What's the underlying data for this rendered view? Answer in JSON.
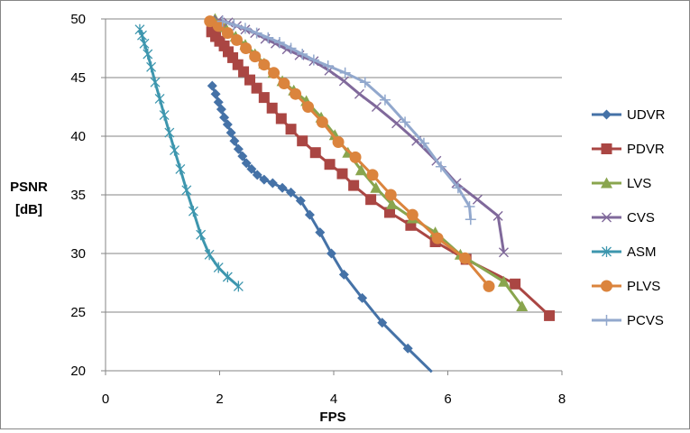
{
  "chart_data": {
    "type": "line",
    "title": "",
    "xlabel": "FPS",
    "ylabel_lines": [
      "PSNR",
      "[dB]"
    ],
    "xlim": [
      0,
      8
    ],
    "ylim": [
      20,
      50
    ],
    "x_ticks": [
      0,
      2,
      4,
      6,
      8
    ],
    "y_ticks": [
      20,
      25,
      30,
      35,
      40,
      45,
      50
    ],
    "grid": "horizontal",
    "legend_position": "right",
    "series": [
      {
        "name": "UDVR",
        "color": "#4572A7",
        "marker": "diamond",
        "points": [
          [
            1.87,
            44.3
          ],
          [
            1.93,
            43.6
          ],
          [
            1.98,
            42.9
          ],
          [
            2.03,
            42.3
          ],
          [
            2.08,
            41.6
          ],
          [
            2.14,
            41.0
          ],
          [
            2.2,
            40.3
          ],
          [
            2.26,
            39.6
          ],
          [
            2.33,
            38.9
          ],
          [
            2.4,
            38.3
          ],
          [
            2.47,
            37.7
          ],
          [
            2.56,
            37.2
          ],
          [
            2.66,
            36.7
          ],
          [
            2.78,
            36.3
          ],
          [
            2.93,
            36.0
          ],
          [
            3.1,
            35.6
          ],
          [
            3.25,
            35.2
          ],
          [
            3.42,
            34.5
          ],
          [
            3.58,
            33.3
          ],
          [
            3.76,
            31.8
          ],
          [
            3.96,
            30.0
          ],
          [
            4.18,
            28.2
          ],
          [
            4.5,
            26.2
          ],
          [
            4.85,
            24.1
          ],
          [
            5.3,
            21.9
          ],
          [
            5.72,
            19.9
          ]
        ]
      },
      {
        "name": "PDVR",
        "color": "#AA4643",
        "marker": "square",
        "points": [
          [
            1.86,
            48.9
          ],
          [
            1.93,
            48.5
          ],
          [
            2.0,
            48.1
          ],
          [
            2.08,
            47.7
          ],
          [
            2.15,
            47.2
          ],
          [
            2.23,
            46.7
          ],
          [
            2.32,
            46.1
          ],
          [
            2.42,
            45.5
          ],
          [
            2.53,
            44.8
          ],
          [
            2.65,
            44.1
          ],
          [
            2.78,
            43.3
          ],
          [
            2.92,
            42.4
          ],
          [
            3.08,
            41.5
          ],
          [
            3.25,
            40.6
          ],
          [
            3.45,
            39.6
          ],
          [
            3.68,
            38.6
          ],
          [
            3.93,
            37.6
          ],
          [
            4.15,
            36.8
          ],
          [
            4.35,
            35.8
          ],
          [
            4.65,
            34.6
          ],
          [
            4.98,
            33.5
          ],
          [
            5.35,
            32.4
          ],
          [
            5.78,
            31.0
          ],
          [
            6.32,
            29.5
          ],
          [
            7.18,
            27.4
          ],
          [
            7.78,
            24.7
          ]
        ]
      },
      {
        "name": "LVS",
        "color": "#89A54E",
        "marker": "triangle",
        "points": [
          [
            1.92,
            50.0
          ],
          [
            2.1,
            49.3
          ],
          [
            2.28,
            48.5
          ],
          [
            2.45,
            47.8
          ],
          [
            2.62,
            47.0
          ],
          [
            2.78,
            46.2
          ],
          [
            2.94,
            45.4
          ],
          [
            3.1,
            44.7
          ],
          [
            3.3,
            43.9
          ],
          [
            3.52,
            43.0
          ],
          [
            3.78,
            41.6
          ],
          [
            4.02,
            40.1
          ],
          [
            4.25,
            38.6
          ],
          [
            4.48,
            37.1
          ],
          [
            4.74,
            35.6
          ],
          [
            5.02,
            34.2
          ],
          [
            5.38,
            33.0
          ],
          [
            5.78,
            31.8
          ],
          [
            6.22,
            29.9
          ],
          [
            6.98,
            27.6
          ],
          [
            7.3,
            25.5
          ]
        ]
      },
      {
        "name": "CVS",
        "color": "#80699B",
        "marker": "x",
        "points": [
          [
            1.98,
            49.9
          ],
          [
            2.15,
            49.7
          ],
          [
            2.3,
            49.4
          ],
          [
            2.45,
            49.1
          ],
          [
            2.62,
            48.8
          ],
          [
            2.8,
            48.3
          ],
          [
            2.98,
            47.9
          ],
          [
            3.18,
            47.4
          ],
          [
            3.4,
            46.9
          ],
          [
            3.65,
            46.4
          ],
          [
            3.92,
            45.6
          ],
          [
            4.18,
            44.7
          ],
          [
            4.45,
            43.6
          ],
          [
            4.75,
            42.5
          ],
          [
            5.1,
            41.1
          ],
          [
            5.45,
            39.6
          ],
          [
            5.8,
            37.9
          ],
          [
            6.15,
            36.0
          ],
          [
            6.52,
            34.6
          ],
          [
            6.88,
            33.2
          ],
          [
            6.98,
            30.1
          ]
        ]
      },
      {
        "name": "ASM",
        "color": "#3D96AE",
        "marker": "asterisk",
        "points": [
          [
            0.6,
            49.1
          ],
          [
            0.64,
            48.6
          ],
          [
            0.68,
            47.9
          ],
          [
            0.74,
            47.0
          ],
          [
            0.8,
            45.9
          ],
          [
            0.87,
            44.6
          ],
          [
            0.95,
            43.2
          ],
          [
            1.03,
            41.8
          ],
          [
            1.12,
            40.3
          ],
          [
            1.21,
            38.8
          ],
          [
            1.31,
            37.2
          ],
          [
            1.42,
            35.4
          ],
          [
            1.54,
            33.6
          ],
          [
            1.67,
            31.6
          ],
          [
            1.82,
            29.9
          ],
          [
            1.98,
            28.8
          ],
          [
            2.14,
            28.0
          ],
          [
            2.33,
            27.2
          ]
        ]
      },
      {
        "name": "PLVS",
        "color": "#DB843D",
        "marker": "circle",
        "points": [
          [
            1.83,
            49.8
          ],
          [
            1.98,
            49.4
          ],
          [
            2.14,
            48.8
          ],
          [
            2.3,
            48.2
          ],
          [
            2.46,
            47.5
          ],
          [
            2.62,
            46.8
          ],
          [
            2.78,
            46.1
          ],
          [
            2.95,
            45.4
          ],
          [
            3.13,
            44.5
          ],
          [
            3.33,
            43.6
          ],
          [
            3.55,
            42.5
          ],
          [
            3.8,
            41.2
          ],
          [
            4.08,
            39.5
          ],
          [
            4.38,
            38.2
          ],
          [
            4.68,
            36.7
          ],
          [
            5.0,
            35.0
          ],
          [
            5.38,
            33.3
          ],
          [
            5.82,
            31.3
          ],
          [
            6.3,
            29.6
          ],
          [
            6.72,
            27.2
          ]
        ]
      },
      {
        "name": "PCVS",
        "color": "#92A8CD",
        "marker": "plus",
        "points": [
          [
            2.05,
            49.8
          ],
          [
            2.25,
            49.5
          ],
          [
            2.45,
            49.2
          ],
          [
            2.65,
            48.8
          ],
          [
            2.85,
            48.4
          ],
          [
            3.05,
            48.0
          ],
          [
            3.25,
            47.5
          ],
          [
            3.45,
            47.0
          ],
          [
            3.65,
            46.5
          ],
          [
            3.9,
            46.0
          ],
          [
            4.2,
            45.4
          ],
          [
            4.55,
            44.6
          ],
          [
            4.9,
            43.1
          ],
          [
            5.25,
            41.2
          ],
          [
            5.58,
            39.4
          ],
          [
            5.88,
            37.4
          ],
          [
            6.18,
            35.6
          ],
          [
            6.38,
            34.0
          ],
          [
            6.4,
            32.9
          ]
        ]
      }
    ]
  }
}
